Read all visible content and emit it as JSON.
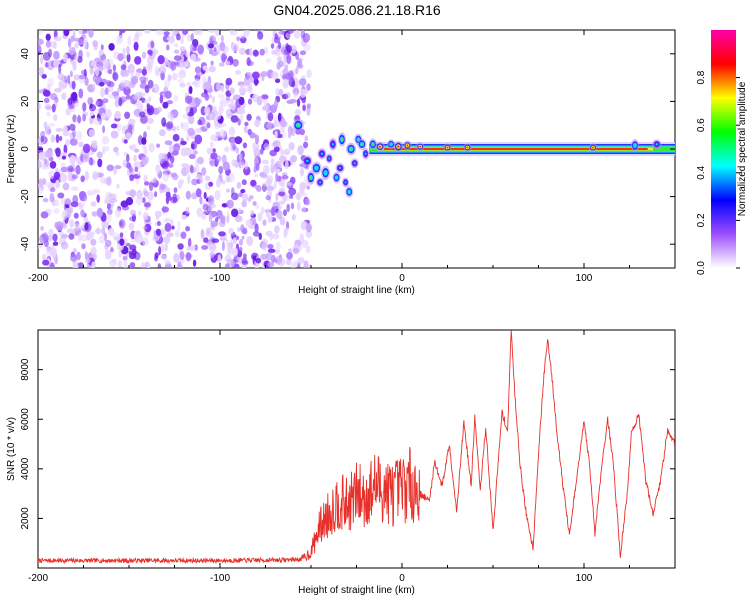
{
  "title": "GN04.2025.086.21.18.R16",
  "chart_data": [
    {
      "type": "heatmap",
      "xlabel": "Height of straight line (km)",
      "ylabel": "Frequency (Hz)",
      "xlim": [
        -200,
        150
      ],
      "ylim": [
        -50,
        50
      ],
      "xticks": [
        -200,
        -100,
        0,
        100
      ],
      "yticks": [
        -40,
        -20,
        0,
        20,
        40
      ],
      "colorbar": {
        "label": "Normalized spectral amplitude",
        "range": [
          0,
          1
        ],
        "ticks": [
          0.0,
          0.2,
          0.4,
          0.6,
          0.8
        ],
        "tick_labels": [
          "0.0",
          "0.2",
          "0.4",
          "0.6",
          "0.8"
        ],
        "colors": [
          "#ffffff",
          "#9d4dff",
          "#0000ff",
          "#00ffff",
          "#00ff00",
          "#ffff00",
          "#ff0000",
          "#ff00aa"
        ]
      },
      "features": {
        "noise_region_x": [
          -200,
          -55
        ],
        "transition_region_x": [
          -55,
          -18
        ],
        "carrier_frequency_hz": 0,
        "carrier_region_x": [
          -18,
          150
        ]
      }
    },
    {
      "type": "line",
      "xlabel": "Height of straight line (km)",
      "ylabel": "SNR (10 * v/v)",
      "xlim": [
        -200,
        150
      ],
      "ylim": [
        0,
        9600
      ],
      "xticks": [
        -200,
        -100,
        0,
        100
      ],
      "yticks": [
        2000,
        4000,
        6000,
        8000
      ],
      "color": "#e8302a",
      "x": [
        -200,
        -150,
        -100,
        -70,
        -55,
        -50,
        -45,
        -40,
        -35,
        -30,
        -25,
        -20,
        -15,
        -10,
        -5,
        0,
        5,
        10,
        15,
        18,
        22,
        26,
        30,
        34,
        38,
        40,
        43,
        46,
        50,
        55,
        58,
        60,
        62,
        65,
        68,
        72,
        75,
        78,
        80,
        82,
        85,
        88,
        92,
        96,
        100,
        103,
        106,
        110,
        113,
        116,
        120,
        124,
        126,
        130,
        134,
        138,
        142,
        146,
        150
      ],
      "y": [
        300,
        300,
        300,
        320,
        350,
        650,
        1700,
        2200,
        2700,
        2500,
        3000,
        2800,
        3300,
        3200,
        3000,
        3200,
        3400,
        3000,
        2700,
        4300,
        3300,
        5000,
        2300,
        5900,
        3300,
        6100,
        3100,
        5700,
        1500,
        6300,
        5500,
        9600,
        7000,
        4100,
        2300,
        800,
        4600,
        7800,
        9200,
        8000,
        5600,
        3600,
        1300,
        3600,
        5900,
        4200,
        1400,
        4300,
        6000,
        4300,
        500,
        3200,
        5400,
        6200,
        3500,
        2200,
        3500,
        5600,
        5000
      ]
    }
  ]
}
